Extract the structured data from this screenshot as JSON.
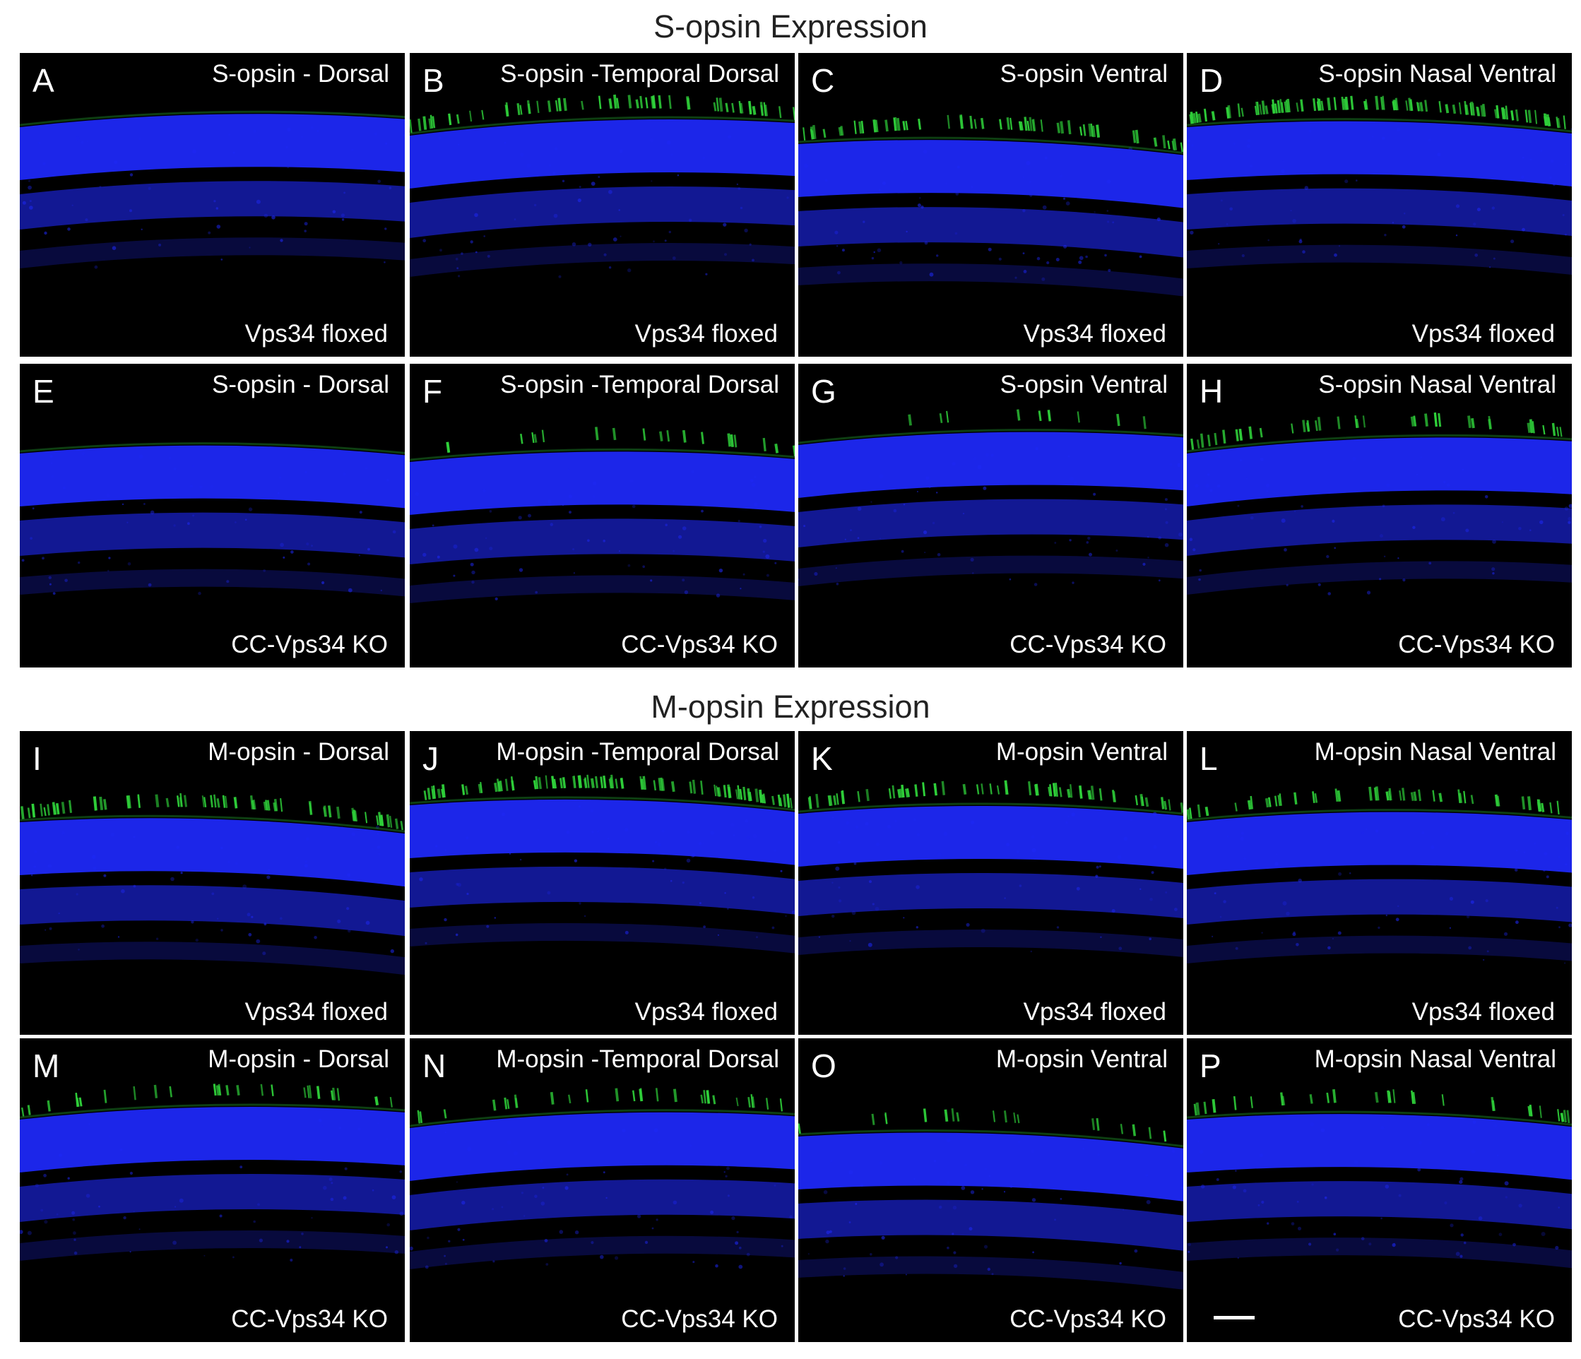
{
  "titles": {
    "s_opsin": "S-opsin Expression",
    "m_opsin": "M-opsin Expression"
  },
  "colors": {
    "nuclei_stain": "#1e28f5",
    "opsin_stain": "#2fd13a",
    "background": "#000000",
    "label_text": "#ffffff"
  },
  "panels": [
    {
      "letter": "A",
      "region": "S-opsin - Dorsal",
      "genotype": "Vps34 floxed",
      "opsin_level": 0.0
    },
    {
      "letter": "B",
      "region": "S-opsin -Temporal Dorsal",
      "genotype": "Vps34 floxed",
      "opsin_level": 0.6
    },
    {
      "letter": "C",
      "region": "S-opsin Ventral",
      "genotype": "Vps34 floxed",
      "opsin_level": 0.6
    },
    {
      "letter": "D",
      "region": "S-opsin Nasal Ventral",
      "genotype": "Vps34 floxed",
      "opsin_level": 1.0
    },
    {
      "letter": "E",
      "region": "S-opsin - Dorsal",
      "genotype": "CC-Vps34 KO",
      "opsin_level": 0.0
    },
    {
      "letter": "F",
      "region": "S-opsin -Temporal Dorsal",
      "genotype": "CC-Vps34 KO",
      "opsin_level": 0.2
    },
    {
      "letter": "G",
      "region": "S-opsin Ventral",
      "genotype": "CC-Vps34 KO",
      "opsin_level": 0.1
    },
    {
      "letter": "H",
      "region": "S-opsin Nasal Ventral",
      "genotype": "CC-Vps34 KO",
      "opsin_level": 0.4
    },
    {
      "letter": "I",
      "region": "M-opsin - Dorsal",
      "genotype": "Vps34 floxed",
      "opsin_level": 0.7
    },
    {
      "letter": "J",
      "region": "M-opsin -Temporal Dorsal",
      "genotype": "Vps34 floxed",
      "opsin_level": 0.9
    },
    {
      "letter": "K",
      "region": "M-opsin Ventral",
      "genotype": "Vps34 floxed",
      "opsin_level": 0.6
    },
    {
      "letter": "L",
      "region": "M-opsin Nasal Ventral",
      "genotype": "Vps34 floxed",
      "opsin_level": 0.5
    },
    {
      "letter": "M",
      "region": "M-opsin - Dorsal",
      "genotype": "CC-Vps34 KO",
      "opsin_level": 0.3
    },
    {
      "letter": "N",
      "region": "M-opsin -Temporal Dorsal",
      "genotype": "CC-Vps34 KO",
      "opsin_level": 0.3
    },
    {
      "letter": "O",
      "region": "M-opsin Ventral",
      "genotype": "CC-Vps34 KO",
      "opsin_level": 0.2
    },
    {
      "letter": "P",
      "region": "M-opsin Nasal Ventral",
      "genotype": "CC-Vps34 KO",
      "opsin_level": 0.3
    }
  ]
}
